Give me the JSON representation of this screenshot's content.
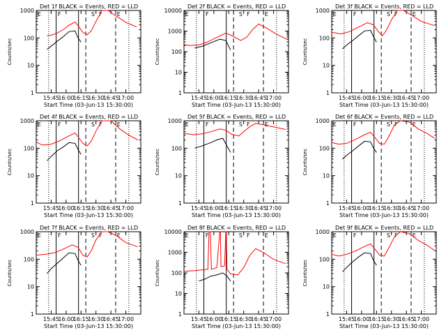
{
  "chart_data": [
    {
      "type": "line",
      "title": "Det 1f BLACK = Events, RED = LLD",
      "xlabel": "Start Time (03-Jun-13 15:30:00)",
      "ylabel": "Counts/sec",
      "xticks": [
        "15:45",
        "16:00",
        "16:15",
        "16:30",
        "16:45",
        "17:00"
      ],
      "yticks": [
        "1",
        "10",
        "100",
        "1000"
      ],
      "ymax": 1000,
      "log_y": true,
      "region_labels": [
        "E",
        "F",
        "S",
        "F",
        "E"
      ],
      "series": [
        {
          "color": "#000000",
          "x": [
            15.68,
            15.75,
            15.85,
            15.95,
            16.05,
            16.15,
            16.2,
            16.25
          ],
          "y": [
            38,
            50,
            75,
            110,
            170,
            180,
            100,
            70
          ]
        },
        {
          "color": "#ff0000",
          "x": [
            15.68,
            15.75,
            15.85,
            15.95,
            16.05,
            16.15,
            16.2,
            16.28,
            16.35,
            16.42,
            16.5,
            16.6,
            16.7,
            16.85,
            17.0,
            17.18
          ],
          "y": [
            120,
            125,
            150,
            200,
            290,
            380,
            280,
            160,
            130,
            180,
            400,
            1000,
            1000,
            600,
            370,
            250
          ]
        }
      ]
    },
    {
      "type": "line",
      "title": "Det 2f BLACK = Events, RED = LLD",
      "xlabel": "Start Time (03-Jun-13 15:30:00)",
      "ylabel": "Counts/sec",
      "xticks": [
        "15:45",
        "16:00",
        "16:15",
        "16:30",
        "16:45",
        "17:00"
      ],
      "yticks": [
        "1",
        "10",
        "100",
        "1000",
        "10000"
      ],
      "ymax": 10000,
      "log_y": true,
      "region_labels": [
        "E",
        "F",
        "S",
        "F",
        "E"
      ],
      "series": [
        {
          "color": "#000000",
          "x": [
            15.68,
            15.8,
            15.95,
            16.1,
            16.2,
            16.28
          ],
          "y": [
            150,
            180,
            270,
            400,
            350,
            120
          ]
        },
        {
          "color": "#ff0000",
          "x": [
            15.5,
            15.6,
            15.75,
            15.9,
            16.05,
            16.2,
            16.3,
            16.45,
            16.55,
            16.65,
            16.75,
            16.9,
            17.05,
            17.22
          ],
          "y": [
            220,
            200,
            210,
            300,
            500,
            800,
            600,
            350,
            500,
            1200,
            2200,
            1300,
            700,
            400
          ]
        }
      ]
    },
    {
      "type": "line",
      "title": "Det 3f BLACK = Events, RED = LLD",
      "xlabel": "Start Time (03-Jun-13 15:30:00)",
      "ylabel": "Counts/sec",
      "xticks": [
        "15:45",
        "16:00",
        "16:15",
        "16:30",
        "16:45",
        "17:00"
      ],
      "yticks": [
        "1",
        "10",
        "100",
        "1000"
      ],
      "ymax": 1000,
      "log_y": true,
      "region_labels": [
        "E",
        "F",
        "S",
        "F",
        "E"
      ],
      "series": [
        {
          "color": "#000000",
          "x": [
            15.68,
            15.75,
            15.85,
            15.95,
            16.05,
            16.15,
            16.2,
            16.25
          ],
          "y": [
            40,
            55,
            80,
            120,
            180,
            190,
            110,
            70
          ]
        },
        {
          "color": "#ff0000",
          "x": [
            15.5,
            15.65,
            15.8,
            15.95,
            16.1,
            16.2,
            16.28,
            16.35,
            16.42,
            16.5,
            16.6,
            16.7,
            16.85,
            17.0,
            17.22
          ],
          "y": [
            160,
            140,
            170,
            250,
            360,
            300,
            170,
            120,
            200,
            450,
            1000,
            1000,
            650,
            400,
            280
          ]
        }
      ]
    },
    {
      "type": "line",
      "title": "Det 4f BLACK = Events, RED = LLD",
      "xlabel": "Start Time (03-Jun-13 15:30:00)",
      "ylabel": "Counts/sec",
      "xticks": [
        "15:45",
        "16:00",
        "16:15",
        "16:30",
        "16:45",
        "17:00"
      ],
      "yticks": [
        "1",
        "10",
        "100",
        "1000"
      ],
      "ymax": 1000,
      "log_y": true,
      "region_labels": [
        "E",
        "F",
        "S",
        "F",
        "E"
      ],
      "series": [
        {
          "color": "#000000",
          "x": [
            15.68,
            15.75,
            15.85,
            15.95,
            16.05,
            16.15,
            16.2,
            16.25
          ],
          "y": [
            35,
            50,
            80,
            110,
            160,
            150,
            90,
            60
          ]
        },
        {
          "color": "#ff0000",
          "x": [
            15.5,
            15.6,
            15.75,
            15.9,
            16.05,
            16.15,
            16.2,
            16.28,
            16.35,
            16.42,
            16.5,
            16.6,
            16.75,
            16.9,
            17.05,
            17.2
          ],
          "y": [
            170,
            130,
            140,
            190,
            280,
            360,
            260,
            150,
            120,
            180,
            420,
            1000,
            1000,
            500,
            300,
            200
          ]
        }
      ]
    },
    {
      "type": "line",
      "title": "Det 5f BLACK = Events, RED = LLD",
      "xlabel": "Start Time (03-Jun-13 15:30:00)",
      "ylabel": "Counts/sec",
      "xticks": [
        "15:45",
        "16:00",
        "16:15",
        "16:30",
        "16:45",
        "17:00"
      ],
      "yticks": [
        "1",
        "10",
        "100",
        "1000"
      ],
      "ymax": 1000,
      "log_y": true,
      "region_labels": [
        "E",
        "F",
        "S",
        "F",
        "E"
      ],
      "series": [
        {
          "color": "#000000",
          "x": [
            15.68,
            15.8,
            15.95,
            16.05,
            16.15,
            16.22,
            16.28
          ],
          "y": [
            100,
            120,
            160,
            200,
            230,
            120,
            70
          ]
        },
        {
          "color": "#ff0000",
          "x": [
            15.5,
            15.65,
            15.8,
            15.95,
            16.1,
            16.2,
            16.3,
            16.42,
            16.5,
            16.6,
            16.7,
            16.85,
            17.0,
            17.2
          ],
          "y": [
            350,
            310,
            330,
            400,
            500,
            450,
            320,
            280,
            400,
            600,
            800,
            700,
            600,
            480
          ]
        }
      ]
    },
    {
      "type": "line",
      "title": "Det 6f BLACK = Events, RED = LLD",
      "xlabel": "Start Time (03-Jun-13 15:30:00)",
      "ylabel": "Counts/sec",
      "xticks": [
        "15:45",
        "16:00",
        "16:15",
        "16:30",
        "16:45",
        "17:00"
      ],
      "yticks": [
        "1",
        "10",
        "100",
        "1000"
      ],
      "ymax": 1000,
      "log_y": true,
      "region_labels": [
        "E",
        "F",
        "S",
        "F",
        "E"
      ],
      "series": [
        {
          "color": "#000000",
          "x": [
            15.68,
            15.75,
            15.85,
            15.95,
            16.05,
            16.15,
            16.2,
            16.25
          ],
          "y": [
            40,
            55,
            80,
            120,
            180,
            170,
            100,
            70
          ]
        },
        {
          "color": "#ff0000",
          "x": [
            15.5,
            15.62,
            15.75,
            15.9,
            16.05,
            16.15,
            16.22,
            16.3,
            16.38,
            16.45,
            16.55,
            16.65,
            16.8,
            16.95,
            17.1,
            17.22
          ],
          "y": [
            160,
            140,
            150,
            210,
            310,
            380,
            250,
            150,
            140,
            250,
            700,
            1000,
            900,
            500,
            340,
            230
          ]
        }
      ]
    },
    {
      "type": "line",
      "title": "Det 7f BLACK = Events, RED = LLD",
      "xlabel": "Start Time (03-Jun-13 15:30:00)",
      "ylabel": "Counts/sec",
      "xticks": [
        "15:45",
        "16:00",
        "16:15",
        "16:30",
        "16:45",
        "17:00"
      ],
      "yticks": [
        "1",
        "10",
        "100",
        "1000"
      ],
      "ymax": 1000,
      "log_y": true,
      "region_labels": [
        "E",
        "F",
        "S",
        "F",
        "E"
      ],
      "series": [
        {
          "color": "#000000",
          "x": [
            15.68,
            15.75,
            15.85,
            15.95,
            16.05,
            16.15,
            16.2,
            16.25
          ],
          "y": [
            30,
            45,
            70,
            110,
            170,
            160,
            90,
            60
          ]
        },
        {
          "color": "#ff0000",
          "x": [
            15.5,
            15.65,
            15.8,
            15.95,
            16.1,
            16.2,
            16.28,
            16.35,
            16.42,
            16.5,
            16.6,
            16.7,
            16.85,
            17.0,
            17.2
          ],
          "y": [
            140,
            150,
            170,
            230,
            330,
            270,
            140,
            120,
            200,
            500,
            1000,
            1000,
            700,
            400,
            280
          ]
        }
      ]
    },
    {
      "type": "line",
      "title": "Det 8f BLACK = Events, RED = LLD",
      "xlabel": "Start Time (03-Jun-13 15:30:00)",
      "ylabel": "Counts/sec",
      "xticks": [
        "15:45",
        "16:00",
        "16:15",
        "16:30",
        "16:45",
        "17:00"
      ],
      "yticks": [
        "1",
        "10",
        "100",
        "1000",
        "10000"
      ],
      "ymax": 10000,
      "log_y": true,
      "region_labels": [
        "E",
        "F",
        "S",
        "F",
        "E"
      ],
      "series": [
        {
          "color": "#000000",
          "x": [
            15.75,
            15.85,
            15.95,
            16.05,
            16.15,
            16.22,
            16.28
          ],
          "y": [
            40,
            50,
            70,
            80,
            100,
            70,
            40
          ]
        },
        {
          "color": "#ff0000",
          "x": [
            15.5,
            15.7,
            15.9,
            15.92,
            15.94,
            15.96,
            16.05,
            16.1,
            16.11,
            16.12,
            16.18,
            16.2,
            16.21,
            16.22,
            16.28,
            16.4,
            16.5,
            16.6,
            16.7,
            16.85,
            17.0,
            17.2
          ],
          "y": [
            120,
            130,
            150,
            10000,
            10000,
            150,
            180,
            10000,
            10000,
            200,
            220,
            10000,
            10000,
            150,
            90,
            80,
            180,
            700,
            1500,
            900,
            450,
            280
          ]
        }
      ]
    },
    {
      "type": "line",
      "title": "Det 9f BLACK = Events, RED = LLD",
      "xlabel": "Start Time (03-Jun-13 15:30:00)",
      "ylabel": "Counts/sec",
      "xticks": [
        "15:45",
        "16:00",
        "16:15",
        "16:30",
        "16:45",
        "17:00"
      ],
      "yticks": [
        "1",
        "10",
        "100",
        "1000"
      ],
      "ymax": 1000,
      "log_y": true,
      "region_labels": [
        "E",
        "F",
        "S",
        "F",
        "E"
      ],
      "series": [
        {
          "color": "#000000",
          "x": [
            15.68,
            15.75,
            15.85,
            15.95,
            16.05,
            16.15,
            16.2,
            16.25
          ],
          "y": [
            35,
            50,
            80,
            120,
            170,
            160,
            90,
            60
          ]
        },
        {
          "color": "#ff0000",
          "x": [
            15.5,
            15.62,
            15.75,
            15.9,
            16.05,
            16.15,
            16.22,
            16.3,
            16.38,
            16.45,
            16.55,
            16.65,
            16.8,
            16.95,
            17.1,
            17.22
          ],
          "y": [
            150,
            130,
            150,
            200,
            290,
            360,
            240,
            140,
            130,
            240,
            650,
            1000,
            850,
            480,
            320,
            210
          ]
        }
      ]
    }
  ]
}
